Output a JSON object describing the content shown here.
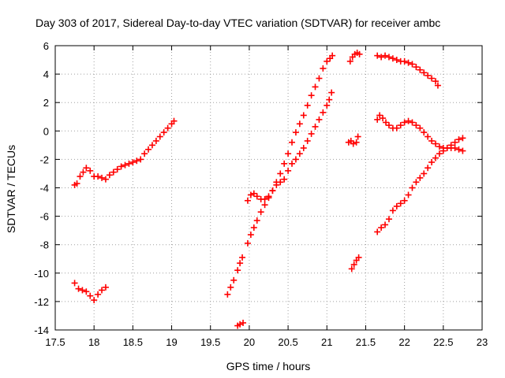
{
  "chart_data": {
    "type": "scatter",
    "title": "Day 303 of 2017, Sidereal Day-to-day VTEC variation (SDTVAR) for receiver ambc",
    "xlabel": "GPS time / hours",
    "ylabel": "SDTVAR / TECUs",
    "xlim": [
      17.5,
      23
    ],
    "ylim": [
      -14,
      6
    ],
    "xticks": [
      17.5,
      18,
      18.5,
      19,
      19.5,
      20,
      20.5,
      21,
      21.5,
      22,
      22.5,
      23
    ],
    "yticks": [
      -14,
      -12,
      -10,
      -8,
      -6,
      -4,
      -2,
      0,
      2,
      4,
      6
    ],
    "xtick_labels": [
      "17.5",
      "18",
      "18.5",
      "19",
      "19.5",
      "20",
      "20.5",
      "21",
      "21.5",
      "22",
      "22.5",
      "23"
    ],
    "ytick_labels": [
      "-14",
      "-12",
      "-10",
      "-8",
      "-6",
      "-4",
      "-2",
      "0",
      "2",
      "4",
      "6"
    ],
    "grid": true,
    "marker": "+",
    "color": "#ff0000",
    "series": [
      {
        "points": [
          [
            17.75,
            -3.8
          ],
          [
            17.78,
            -3.7
          ],
          [
            17.82,
            -3.2
          ],
          [
            17.86,
            -2.9
          ],
          [
            17.9,
            -2.6
          ],
          [
            17.95,
            -2.8
          ],
          [
            18.0,
            -3.2
          ],
          [
            18.05,
            -3.2
          ],
          [
            18.1,
            -3.3
          ],
          [
            18.15,
            -3.4
          ],
          [
            18.2,
            -3.1
          ],
          [
            18.25,
            -2.9
          ],
          [
            18.3,
            -2.7
          ],
          [
            18.35,
            -2.5
          ],
          [
            18.4,
            -2.4
          ],
          [
            18.45,
            -2.3
          ],
          [
            18.5,
            -2.2
          ],
          [
            18.55,
            -2.1
          ],
          [
            18.6,
            -2.0
          ],
          [
            18.65,
            -1.6
          ],
          [
            18.7,
            -1.3
          ],
          [
            18.75,
            -1.0
          ],
          [
            18.8,
            -0.7
          ],
          [
            18.85,
            -0.4
          ],
          [
            18.9,
            -0.1
          ],
          [
            18.95,
            0.2
          ],
          [
            19.0,
            0.5
          ],
          [
            19.03,
            0.7
          ]
        ]
      },
      {
        "points": [
          [
            17.75,
            -10.7
          ],
          [
            17.8,
            -11.1
          ],
          [
            17.85,
            -11.2
          ],
          [
            17.9,
            -11.3
          ],
          [
            17.95,
            -11.6
          ],
          [
            18.0,
            -11.9
          ],
          [
            18.05,
            -11.5
          ],
          [
            18.1,
            -11.2
          ],
          [
            18.15,
            -11.0
          ]
        ]
      },
      {
        "points": [
          [
            19.72,
            -11.5
          ],
          [
            19.76,
            -11.0
          ],
          [
            19.8,
            -10.5
          ],
          [
            19.85,
            -9.8
          ],
          [
            19.88,
            -9.3
          ],
          [
            19.91,
            -8.9
          ]
        ]
      },
      {
        "points": [
          [
            19.85,
            -13.7
          ],
          [
            19.88,
            -13.6
          ],
          [
            19.92,
            -13.5
          ]
        ]
      },
      {
        "points": [
          [
            19.98,
            -7.9
          ],
          [
            20.02,
            -7.3
          ],
          [
            20.06,
            -6.8
          ],
          [
            20.1,
            -6.3
          ],
          [
            20.15,
            -5.7
          ],
          [
            20.2,
            -5.2
          ],
          [
            20.25,
            -4.7
          ],
          [
            20.3,
            -4.2
          ],
          [
            20.35,
            -3.8
          ],
          [
            20.4,
            -3.6
          ],
          [
            20.45,
            -3.4
          ],
          [
            20.5,
            -2.8
          ],
          [
            20.55,
            -2.3
          ],
          [
            20.6,
            -2.0
          ],
          [
            20.65,
            -1.6
          ],
          [
            20.7,
            -1.2
          ],
          [
            20.75,
            -0.7
          ],
          [
            20.8,
            -0.2
          ],
          [
            20.85,
            0.3
          ],
          [
            20.9,
            0.8
          ],
          [
            20.95,
            1.3
          ],
          [
            21.0,
            1.8
          ],
          [
            21.03,
            2.2
          ],
          [
            21.06,
            2.7
          ]
        ]
      },
      {
        "points": [
          [
            19.98,
            -4.9
          ],
          [
            20.02,
            -4.5
          ],
          [
            20.06,
            -4.4
          ],
          [
            20.1,
            -4.6
          ],
          [
            20.15,
            -4.8
          ],
          [
            20.2,
            -4.8
          ],
          [
            20.25,
            -4.6
          ],
          [
            20.3,
            -4.2
          ],
          [
            20.35,
            -3.6
          ],
          [
            20.4,
            -3.0
          ],
          [
            20.45,
            -2.3
          ],
          [
            20.5,
            -1.6
          ],
          [
            20.55,
            -0.8
          ],
          [
            20.6,
            -0.1
          ],
          [
            20.65,
            0.5
          ],
          [
            20.7,
            1.1
          ],
          [
            20.75,
            1.8
          ],
          [
            20.8,
            2.5
          ],
          [
            20.85,
            3.1
          ],
          [
            20.9,
            3.7
          ],
          [
            20.95,
            4.4
          ],
          [
            21.0,
            4.9
          ],
          [
            21.04,
            5.1
          ],
          [
            21.07,
            5.3
          ]
        ]
      },
      {
        "points": [
          [
            21.28,
            -0.8
          ],
          [
            21.31,
            -0.7
          ],
          [
            21.34,
            -0.9
          ],
          [
            21.38,
            -0.8
          ],
          [
            21.4,
            -0.4
          ]
        ]
      },
      {
        "points": [
          [
            21.3,
            4.9
          ],
          [
            21.33,
            5.2
          ],
          [
            21.36,
            5.4
          ],
          [
            21.39,
            5.5
          ],
          [
            21.42,
            5.4
          ]
        ]
      },
      {
        "points": [
          [
            21.32,
            -9.7
          ],
          [
            21.35,
            -9.4
          ],
          [
            21.38,
            -9.1
          ],
          [
            21.41,
            -8.9
          ]
        ]
      },
      {
        "points": [
          [
            21.65,
            5.3
          ],
          [
            21.7,
            5.2
          ],
          [
            21.75,
            5.3
          ],
          [
            21.8,
            5.2
          ],
          [
            21.85,
            5.1
          ],
          [
            21.9,
            5.0
          ],
          [
            21.95,
            4.9
          ],
          [
            22.0,
            4.9
          ],
          [
            22.05,
            4.8
          ],
          [
            22.1,
            4.7
          ],
          [
            22.15,
            4.5
          ],
          [
            22.2,
            4.3
          ],
          [
            22.25,
            4.1
          ],
          [
            22.3,
            3.9
          ],
          [
            22.35,
            3.7
          ],
          [
            22.4,
            3.5
          ],
          [
            22.43,
            3.2
          ]
        ]
      },
      {
        "points": [
          [
            21.65,
            0.8
          ],
          [
            21.68,
            1.1
          ],
          [
            21.72,
            0.9
          ],
          [
            21.76,
            0.6
          ],
          [
            21.8,
            0.4
          ],
          [
            21.85,
            0.2
          ],
          [
            21.9,
            0.2
          ],
          [
            21.95,
            0.4
          ],
          [
            22.0,
            0.6
          ],
          [
            22.05,
            0.7
          ],
          [
            22.1,
            0.6
          ],
          [
            22.15,
            0.4
          ],
          [
            22.2,
            0.2
          ],
          [
            22.25,
            -0.1
          ],
          [
            22.3,
            -0.4
          ],
          [
            22.35,
            -0.7
          ],
          [
            22.4,
            -0.9
          ],
          [
            22.45,
            -1.1
          ],
          [
            22.5,
            -1.2
          ],
          [
            22.55,
            -1.2
          ],
          [
            22.6,
            -1.2
          ],
          [
            22.65,
            -1.2
          ],
          [
            22.7,
            -1.3
          ],
          [
            22.75,
            -1.4
          ]
        ]
      },
      {
        "points": [
          [
            21.65,
            -7.1
          ],
          [
            21.7,
            -6.8
          ],
          [
            21.75,
            -6.6
          ],
          [
            21.8,
            -6.2
          ],
          [
            21.85,
            -5.6
          ],
          [
            21.9,
            -5.3
          ],
          [
            21.95,
            -5.1
          ],
          [
            22.0,
            -4.9
          ],
          [
            22.05,
            -4.5
          ],
          [
            22.1,
            -4.0
          ],
          [
            22.15,
            -3.6
          ],
          [
            22.2,
            -3.3
          ],
          [
            22.25,
            -3.0
          ],
          [
            22.3,
            -2.6
          ],
          [
            22.35,
            -2.2
          ],
          [
            22.4,
            -1.9
          ],
          [
            22.45,
            -1.6
          ],
          [
            22.5,
            -1.4
          ],
          [
            22.55,
            -1.2
          ],
          [
            22.6,
            -1.0
          ],
          [
            22.65,
            -0.8
          ],
          [
            22.7,
            -0.6
          ],
          [
            22.75,
            -0.5
          ]
        ]
      }
    ]
  }
}
